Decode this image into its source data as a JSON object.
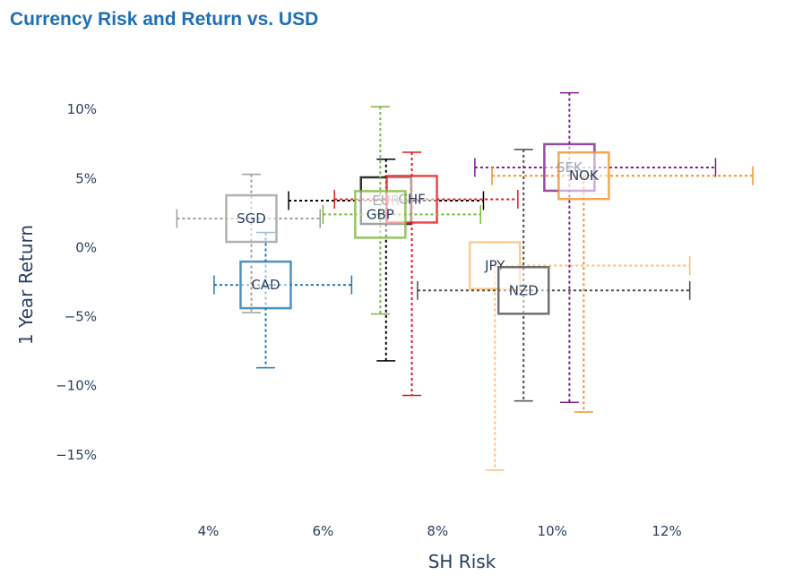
{
  "title": "Currency Risk and Return vs. USD",
  "chart_data": {
    "type": "scatter",
    "title": "Currency Risk and Return vs. USD",
    "xlabel": "SH Risk",
    "ylabel": "1 Year Return",
    "xlim": [
      2.6,
      14.0
    ],
    "ylim": [
      -18.9,
      13.9
    ],
    "x_ticks": [
      4,
      6,
      8,
      10,
      12
    ],
    "x_tick_labels": [
      "4%",
      "6%",
      "8%",
      "10%",
      "12%"
    ],
    "y_ticks": [
      10,
      5,
      0,
      -5,
      -10,
      -15
    ],
    "y_tick_labels": [
      "10%",
      "5%",
      "0%",
      "−5%",
      "−10%",
      "−15%"
    ],
    "grid": false,
    "legend": "none",
    "series": [
      {
        "name": "CAD",
        "x": 5.0,
        "y": -2.7,
        "x_err_minus": 0.9,
        "x_err_plus": 1.5,
        "y_err_minus": 6.0,
        "y_err_plus": 3.8,
        "color": "#1f77b4"
      },
      {
        "name": "SGD",
        "x": 4.75,
        "y": 2.1,
        "x_err_minus": 1.3,
        "x_err_plus": 1.2,
        "y_err_minus": 6.8,
        "y_err_plus": 3.2,
        "color": "#9e9e9e"
      },
      {
        "name": "EUR",
        "x": 7.1,
        "y": 3.4,
        "x_err_minus": 1.7,
        "x_err_plus": 1.7,
        "y_err_minus": 11.6,
        "y_err_plus": 3.0,
        "color": "#000000"
      },
      {
        "name": "CHF",
        "x": 7.55,
        "y": 3.5,
        "x_err_minus": 1.35,
        "x_err_plus": 1.85,
        "y_err_minus": 14.2,
        "y_err_plus": 3.4,
        "color": "#e41a1c"
      },
      {
        "name": "GBP",
        "x": 7.0,
        "y": 2.4,
        "x_err_minus": 1.0,
        "x_err_plus": 1.75,
        "y_err_minus": 7.2,
        "y_err_plus": 7.8,
        "color": "#7ab83a"
      },
      {
        "name": "JPY",
        "x": 9.0,
        "y": -1.3,
        "x_err_minus": 0.0,
        "x_err_plus": 3.4,
        "y_err_minus": 14.8,
        "y_err_plus": 0.0,
        "color": "#fdbf6f"
      },
      {
        "name": "NZD",
        "x": 9.5,
        "y": -3.1,
        "x_err_minus": 1.85,
        "x_err_plus": 2.9,
        "y_err_minus": 8.0,
        "y_err_plus": 10.2,
        "color": "#4d4d4d"
      },
      {
        "name": "SEK",
        "x": 10.3,
        "y": 5.8,
        "x_err_minus": 1.65,
        "x_err_plus": 2.55,
        "y_err_minus": 17.0,
        "y_err_plus": 5.4,
        "color": "#7b1f8a"
      },
      {
        "name": "NOK",
        "x": 10.55,
        "y": 5.2,
        "x_err_minus": 1.6,
        "x_err_plus": 2.95,
        "y_err_minus": 17.1,
        "y_err_plus": 0.0,
        "color": "#f0922b"
      }
    ]
  }
}
